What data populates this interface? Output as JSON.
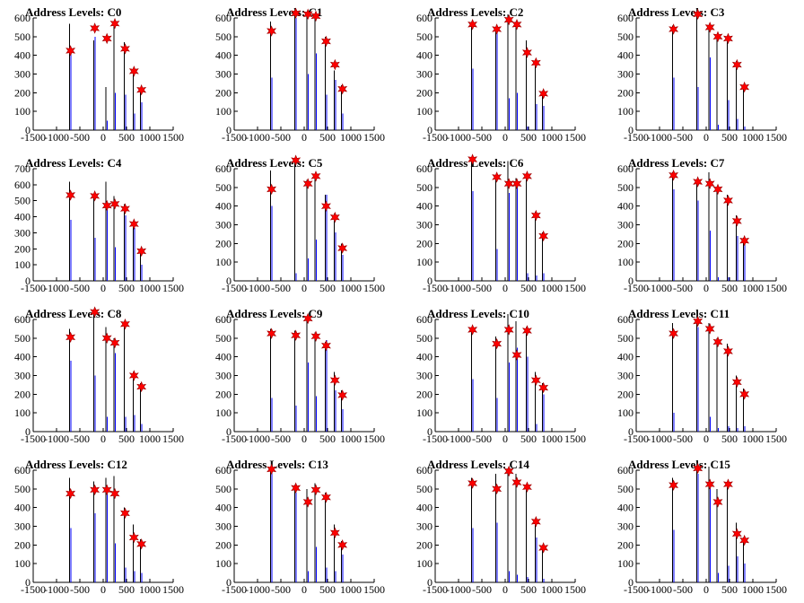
{
  "figure": {
    "background": "#ffffff"
  },
  "colors": {
    "hist_black": "#000000",
    "hist_blue": "#0000ff",
    "marker": "#ff0000"
  },
  "chart_data": [
    {
      "type": "bar",
      "title": "Address Levels: C0",
      "xlim": [
        -1500,
        1500
      ],
      "ylim": [
        0,
        600
      ],
      "xticks": [
        "-1500",
        "-1000",
        "-500",
        "0",
        "500",
        "1000",
        "1500"
      ],
      "yticks": [
        "0",
        "100",
        "200",
        "300",
        "400",
        "500",
        "600"
      ],
      "levels": [
        -700,
        -180,
        80,
        250,
        470,
        660,
        820
      ],
      "black": [
        570,
        480,
        230,
        560,
        470,
        300,
        210
      ],
      "blue": [
        430,
        500,
        50,
        200,
        190,
        90,
        150
      ],
      "markers": [
        425,
        545,
        490,
        570,
        435,
        315,
        215
      ]
    },
    {
      "type": "bar",
      "title": "Address Levels: C1",
      "xlim": [
        -1500,
        1500
      ],
      "ylim": [
        0,
        600
      ],
      "xticks": [
        "-1500",
        "-1000",
        "-500",
        "0",
        "500",
        "1000",
        "1500"
      ],
      "yticks": [
        "0",
        "100",
        "200",
        "300",
        "400",
        "500",
        "600"
      ],
      "levels": [
        -700,
        -180,
        80,
        250,
        470,
        660,
        820
      ],
      "black": [
        580,
        620,
        630,
        610,
        500,
        320,
        240
      ],
      "blue": [
        280,
        600,
        300,
        410,
        190,
        270,
        90
      ],
      "markers": [
        530,
        625,
        620,
        610,
        475,
        350,
        220
      ]
    },
    {
      "type": "bar",
      "title": "Address Levels: C2",
      "xlim": [
        -1500,
        1500
      ],
      "ylim": [
        0,
        600
      ],
      "xticks": [
        "-1500",
        "-1000",
        "-500",
        "0",
        "500",
        "1000",
        "1500"
      ],
      "yticks": [
        "0",
        "100",
        "200",
        "300",
        "400",
        "500",
        "600"
      ],
      "levels": [
        -700,
        -180,
        80,
        250,
        470,
        660,
        820
      ],
      "black": [
        570,
        550,
        620,
        580,
        480,
        370,
        210
      ],
      "blue": [
        330,
        520,
        170,
        200,
        20,
        140,
        130
      ],
      "markers": [
        565,
        540,
        590,
        565,
        415,
        360,
        195
      ]
    },
    {
      "type": "bar",
      "title": "Address Levels: C3",
      "xlim": [
        -1500,
        1500
      ],
      "ylim": [
        0,
        600
      ],
      "xticks": [
        "-1500",
        "-1000",
        "-500",
        "0",
        "500",
        "1000",
        "1500"
      ],
      "yticks": [
        "0",
        "100",
        "200",
        "300",
        "400",
        "500",
        "600"
      ],
      "levels": [
        -700,
        -180,
        80,
        250,
        470,
        660,
        820
      ],
      "black": [
        560,
        620,
        550,
        500,
        480,
        370,
        240
      ],
      "blue": [
        280,
        230,
        390,
        30,
        160,
        60,
        20
      ],
      "markers": [
        540,
        620,
        550,
        500,
        490,
        350,
        230
      ]
    },
    {
      "type": "bar",
      "title": "Address Levels: C4",
      "xlim": [
        -1500,
        1500
      ],
      "ylim": [
        0,
        700
      ],
      "xticks": [
        "-1500",
        "-1000",
        "-500",
        "0",
        "500",
        "1000",
        "1500"
      ],
      "yticks": [
        "0",
        "100",
        "200",
        "300",
        "400",
        "500",
        "600",
        "700"
      ],
      "levels": [
        -700,
        -180,
        80,
        250,
        470,
        660,
        820
      ],
      "black": [
        620,
        540,
        620,
        530,
        480,
        370,
        200
      ],
      "blue": [
        380,
        270,
        460,
        210,
        410,
        330,
        100
      ],
      "markers": [
        535,
        530,
        470,
        480,
        450,
        355,
        185
      ]
    },
    {
      "type": "bar",
      "title": "Address Levels: C5",
      "xlim": [
        -1500,
        1500
      ],
      "ylim": [
        0,
        600
      ],
      "xticks": [
        "-1500",
        "-1000",
        "-500",
        "0",
        "500",
        "1000",
        "1500"
      ],
      "yticks": [
        "0",
        "100",
        "200",
        "300",
        "400",
        "500",
        "600"
      ],
      "levels": [
        -700,
        -180,
        80,
        250,
        470,
        660,
        820
      ],
      "black": [
        590,
        650,
        540,
        560,
        460,
        360,
        200
      ],
      "blue": [
        400,
        40,
        120,
        220,
        460,
        260,
        140
      ],
      "markers": [
        490,
        645,
        520,
        560,
        400,
        340,
        175
      ]
    },
    {
      "type": "bar",
      "title": "Address Levels: C6",
      "xlim": [
        -1500,
        1500
      ],
      "ylim": [
        0,
        600
      ],
      "xticks": [
        "-1500",
        "-1000",
        "-500",
        "0",
        "500",
        "1000",
        "1500"
      ],
      "yticks": [
        "0",
        "100",
        "200",
        "300",
        "400",
        "500",
        "600"
      ],
      "levels": [
        -700,
        -180,
        80,
        250,
        470,
        660,
        820
      ],
      "black": [
        650,
        560,
        640,
        550,
        560,
        370,
        260
      ],
      "blue": [
        480,
        170,
        470,
        510,
        40,
        30,
        40
      ],
      "markers": [
        650,
        555,
        520,
        520,
        560,
        350,
        240
      ]
    },
    {
      "type": "bar",
      "title": "Address Levels: C7",
      "xlim": [
        -1500,
        1500
      ],
      "ylim": [
        0,
        600
      ],
      "xticks": [
        "-1500",
        "-1000",
        "-500",
        "0",
        "500",
        "1000",
        "1500"
      ],
      "yticks": [
        "0",
        "100",
        "200",
        "300",
        "400",
        "500",
        "600"
      ],
      "levels": [
        -700,
        -180,
        80,
        250,
        470,
        660,
        820
      ],
      "black": [
        580,
        540,
        580,
        500,
        460,
        350,
        230
      ],
      "blue": [
        490,
        430,
        270,
        20,
        20,
        240,
        200
      ],
      "markers": [
        565,
        530,
        520,
        490,
        430,
        320,
        215
      ]
    },
    {
      "type": "bar",
      "title": "Address Levels: C8",
      "xlim": [
        -1500,
        1500
      ],
      "ylim": [
        0,
        600
      ],
      "xticks": [
        "-1500",
        "-1000",
        "-500",
        "0",
        "500",
        "1000",
        "1500"
      ],
      "yticks": [
        "0",
        "100",
        "200",
        "300",
        "400",
        "500",
        "600"
      ],
      "levels": [
        -700,
        -180,
        80,
        250,
        470,
        660,
        820
      ],
      "black": [
        550,
        640,
        560,
        500,
        580,
        320,
        260
      ],
      "blue": [
        380,
        300,
        80,
        420,
        80,
        90,
        40
      ],
      "markers": [
        505,
        640,
        500,
        475,
        575,
        300,
        240
      ]
    },
    {
      "type": "bar",
      "title": "Address Levels: C9",
      "xlim": [
        -1500,
        1500
      ],
      "ylim": [
        0,
        600
      ],
      "xticks": [
        "-1500",
        "-1000",
        "-500",
        "0",
        "500",
        "1000",
        "1500"
      ],
      "yticks": [
        "0",
        "100",
        "200",
        "300",
        "400",
        "500",
        "600"
      ],
      "levels": [
        -700,
        -180,
        80,
        250,
        470,
        660,
        820
      ],
      "black": [
        550,
        540,
        610,
        530,
        480,
        320,
        220
      ],
      "blue": [
        180,
        140,
        370,
        190,
        490,
        220,
        120
      ],
      "markers": [
        525,
        515,
        605,
        510,
        460,
        275,
        195
      ]
    },
    {
      "type": "bar",
      "title": "Address Levels: C10",
      "xlim": [
        -1500,
        1500
      ],
      "ylim": [
        0,
        600
      ],
      "xticks": [
        "-1500",
        "-1000",
        "-500",
        "0",
        "500",
        "1000",
        "1500"
      ],
      "yticks": [
        "0",
        "100",
        "200",
        "300",
        "400",
        "500",
        "600"
      ],
      "levels": [
        -700,
        -180,
        80,
        250,
        470,
        660,
        820
      ],
      "black": [
        550,
        510,
        630,
        590,
        560,
        320,
        260
      ],
      "blue": [
        280,
        180,
        370,
        450,
        400,
        40,
        200
      ],
      "markers": [
        545,
        470,
        545,
        410,
        540,
        275,
        235
      ]
    },
    {
      "type": "bar",
      "title": "Address Levels: C11",
      "xlim": [
        -1500,
        1500
      ],
      "ylim": [
        0,
        600
      ],
      "xticks": [
        "-1500",
        "-1000",
        "-500",
        "0",
        "500",
        "1000",
        "1500"
      ],
      "yticks": [
        "0",
        "100",
        "200",
        "300",
        "400",
        "500",
        "600"
      ],
      "levels": [
        -700,
        -180,
        80,
        250,
        470,
        660,
        820
      ],
      "black": [
        580,
        600,
        580,
        500,
        470,
        300,
        230
      ],
      "blue": [
        100,
        560,
        80,
        20,
        30,
        20,
        30
      ],
      "markers": [
        525,
        590,
        550,
        480,
        430,
        265,
        200
      ]
    },
    {
      "type": "bar",
      "title": "Address Levels: C12",
      "xlim": [
        -1500,
        1500
      ],
      "ylim": [
        0,
        600
      ],
      "xticks": [
        "-1500",
        "-1000",
        "-500",
        "0",
        "500",
        "1000",
        "1500"
      ],
      "yticks": [
        "0",
        "100",
        "200",
        "300",
        "400",
        "500",
        "600"
      ],
      "levels": [
        -700,
        -180,
        80,
        250,
        470,
        660,
        820
      ],
      "black": [
        560,
        540,
        560,
        570,
        400,
        310,
        230
      ],
      "blue": [
        290,
        370,
        490,
        210,
        80,
        60,
        50
      ],
      "markers": [
        475,
        495,
        495,
        475,
        370,
        240,
        205
      ]
    },
    {
      "type": "bar",
      "title": "Address Levels: C13",
      "xlim": [
        -1500,
        1500
      ],
      "ylim": [
        0,
        600
      ],
      "xticks": [
        "-1500",
        "-1000",
        "-500",
        "0",
        "500",
        "1000",
        "1500"
      ],
      "yticks": [
        "0",
        "100",
        "200",
        "300",
        "400",
        "500",
        "600"
      ],
      "levels": [
        -700,
        -180,
        80,
        250,
        470,
        660,
        820
      ],
      "black": [
        620,
        520,
        500,
        530,
        480,
        310,
        220
      ],
      "blue": [
        590,
        480,
        60,
        190,
        80,
        60,
        150
      ],
      "markers": [
        605,
        505,
        430,
        495,
        455,
        265,
        200
      ]
    },
    {
      "type": "bar",
      "title": "Address Levels: C14",
      "xlim": [
        -1500,
        1500
      ],
      "ylim": [
        0,
        600
      ],
      "xticks": [
        "-1500",
        "-1000",
        "-500",
        "0",
        "500",
        "1000",
        "1500"
      ],
      "yticks": [
        "0",
        "100",
        "200",
        "300",
        "400",
        "500",
        "600"
      ],
      "levels": [
        -700,
        -180,
        80,
        250,
        470,
        660,
        820
      ],
      "black": [
        560,
        580,
        610,
        580,
        520,
        340,
        200
      ],
      "blue": [
        290,
        320,
        60,
        40,
        30,
        240,
        20
      ],
      "markers": [
        530,
        500,
        595,
        535,
        510,
        325,
        185
      ]
    },
    {
      "type": "bar",
      "title": "Address Levels: C15",
      "xlim": [
        -1500,
        1500
      ],
      "ylim": [
        0,
        600
      ],
      "xticks": [
        "-1500",
        "-1000",
        "-500",
        "0",
        "500",
        "1000",
        "1500"
      ],
      "yticks": [
        "0",
        "100",
        "200",
        "300",
        "400",
        "500",
        "600"
      ],
      "levels": [
        -700,
        -180,
        80,
        250,
        470,
        660,
        820
      ],
      "black": [
        560,
        610,
        620,
        500,
        510,
        320,
        240
      ],
      "blue": [
        280,
        580,
        540,
        50,
        90,
        140,
        100
      ],
      "markers": [
        520,
        610,
        525,
        430,
        525,
        260,
        225
      ]
    }
  ]
}
